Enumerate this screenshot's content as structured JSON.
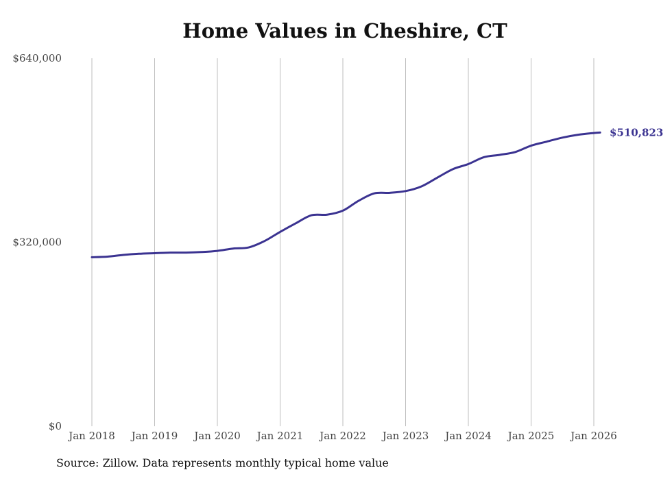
{
  "chart_data": {
    "type": "line",
    "title": "Home Values in Cheshire, CT",
    "xlabel": "",
    "ylabel": "",
    "ylim": [
      0,
      640000
    ],
    "y_ticks": [
      0,
      320000,
      640000
    ],
    "y_tick_labels": [
      "$0",
      "$320,000",
      "$640,000"
    ],
    "x_range": [
      2018.0,
      2026.0
    ],
    "x_ticks": [
      2018,
      2019,
      2020,
      2021,
      2022,
      2023,
      2024,
      2025,
      2026
    ],
    "x_tick_labels": [
      "Jan 2018",
      "Jan 2019",
      "Jan 2020",
      "Jan 2021",
      "Jan 2022",
      "Jan 2023",
      "Jan 2024",
      "Jan 2025",
      "Jan 2026"
    ],
    "grid": "vertical",
    "series": [
      {
        "name": "Typical home value",
        "color": "#3b3391",
        "x": [
          2018.0,
          2018.25,
          2018.5,
          2018.75,
          2019.0,
          2019.25,
          2019.5,
          2019.75,
          2020.0,
          2020.25,
          2020.5,
          2020.75,
          2021.0,
          2021.25,
          2021.5,
          2021.75,
          2022.0,
          2022.25,
          2022.5,
          2022.75,
          2023.0,
          2023.25,
          2023.5,
          2023.75,
          2024.0,
          2024.25,
          2024.5,
          2024.75,
          2025.0,
          2025.25,
          2025.5,
          2025.75,
          2026.0,
          2026.1
        ],
        "values": [
          294000,
          295000,
          298000,
          300000,
          301000,
          302000,
          302000,
          303000,
          305000,
          309000,
          311000,
          322000,
          338000,
          353000,
          367000,
          368000,
          375000,
          392000,
          405000,
          406000,
          409000,
          417000,
          432000,
          447000,
          456000,
          468000,
          472000,
          477000,
          488000,
          495000,
          502000,
          507000,
          510000,
          510823
        ]
      }
    ],
    "end_label": "$510,823"
  },
  "source_note": "Source: Zillow. Data represents monthly typical home value"
}
